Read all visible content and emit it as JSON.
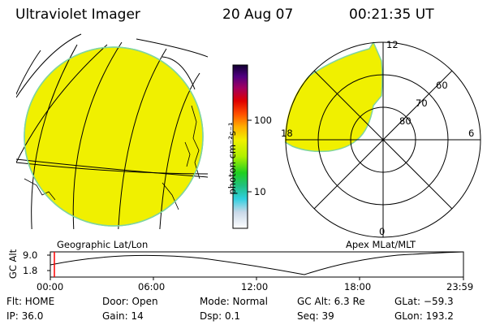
{
  "header": {
    "title": "Ultraviolet Imager",
    "date": "20 Aug 07",
    "time": "00:21:35 UT"
  },
  "colorbar": {
    "unit_label": "photon cm⁻²s⁻¹",
    "ticks": [
      "100",
      "10"
    ]
  },
  "polar": {
    "mlt_labels": [
      "12",
      "18",
      "6",
      "0"
    ],
    "lat_labels": [
      "60",
      "70",
      "80"
    ]
  },
  "labels": {
    "geo": "Geographic Lat/Lon",
    "apex": "Apex MLat/MLT"
  },
  "timeline": {
    "axis_label": "GC Alt",
    "y_ticks": [
      "9.0",
      "1.8"
    ],
    "x_ticks": [
      "00:00",
      "06:00",
      "12:00",
      "18:00",
      "23:59"
    ]
  },
  "info": {
    "flt": "Flt: HOME",
    "ip": "IP: 36.0",
    "door": "Door: Open",
    "gain": "Gain: 14",
    "mode": "Mode: Normal",
    "dsp": "Dsp:    0.1",
    "gcalt": "GC Alt: 6.3 Re",
    "seq": "Seq: 39",
    "glat": "GLat: −59.3",
    "glon": "GLon: 193.2"
  },
  "colors": {
    "aurora": "#f0f000",
    "aurora_edge": "#7fd4a0",
    "line": "#000000",
    "marker": "#ff0000"
  }
}
